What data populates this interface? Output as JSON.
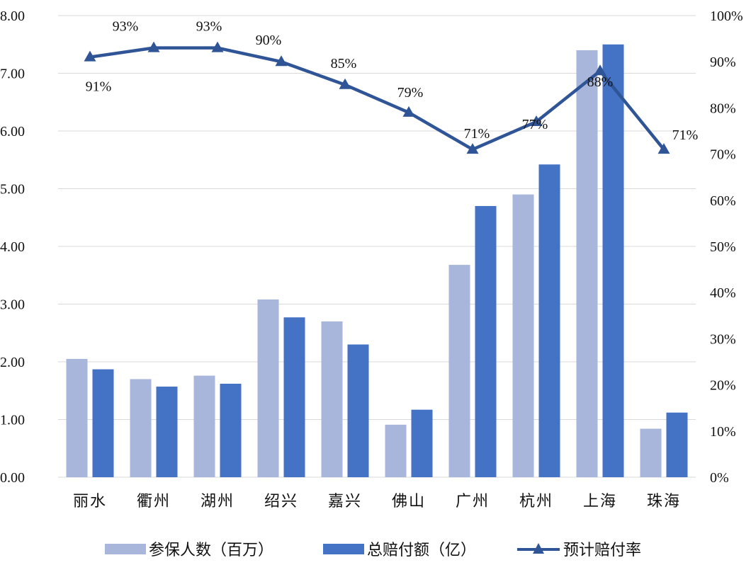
{
  "chart_data": {
    "type": "bar",
    "categories": [
      "丽水",
      "衢州",
      "湖州",
      "绍兴",
      "嘉兴",
      "佛山",
      "广州",
      "杭州",
      "上海",
      "珠海"
    ],
    "series": [
      {
        "name": "参保人数（百万）",
        "type": "bar",
        "axis": "left",
        "color": "#a9b6dc",
        "values": [
          2.05,
          1.7,
          1.76,
          3.08,
          2.7,
          0.91,
          3.68,
          4.9,
          7.4,
          0.84
        ]
      },
      {
        "name": "总赔付额（亿）",
        "type": "bar",
        "axis": "left",
        "color": "#4472c4",
        "values": [
          1.87,
          1.57,
          1.62,
          2.77,
          2.3,
          1.17,
          4.7,
          5.42,
          7.5,
          1.12
        ]
      },
      {
        "name": "预计赔付率",
        "type": "line",
        "axis": "right",
        "color": "#2f5597",
        "marker": "triangle",
        "values": [
          91,
          93,
          93,
          90,
          85,
          79,
          71,
          77,
          88,
          71
        ],
        "labels": [
          "91%",
          "93%",
          "93%",
          "90%",
          "85%",
          "79%",
          "71%",
          "77%",
          "88%",
          "71%"
        ]
      }
    ],
    "y_left": {
      "ylim": [
        0,
        8
      ],
      "ticks": [
        "0.00",
        "1.00",
        "2.00",
        "3.00",
        "4.00",
        "5.00",
        "6.00",
        "7.00",
        "8.00"
      ]
    },
    "y_right": {
      "ylim": [
        0,
        100
      ],
      "ticks": [
        "0%",
        "10%",
        "20%",
        "30%",
        "40%",
        "50%",
        "60%",
        "70%",
        "80%",
        "90%",
        "100%"
      ]
    },
    "grid": true,
    "legend_position": "bottom"
  }
}
